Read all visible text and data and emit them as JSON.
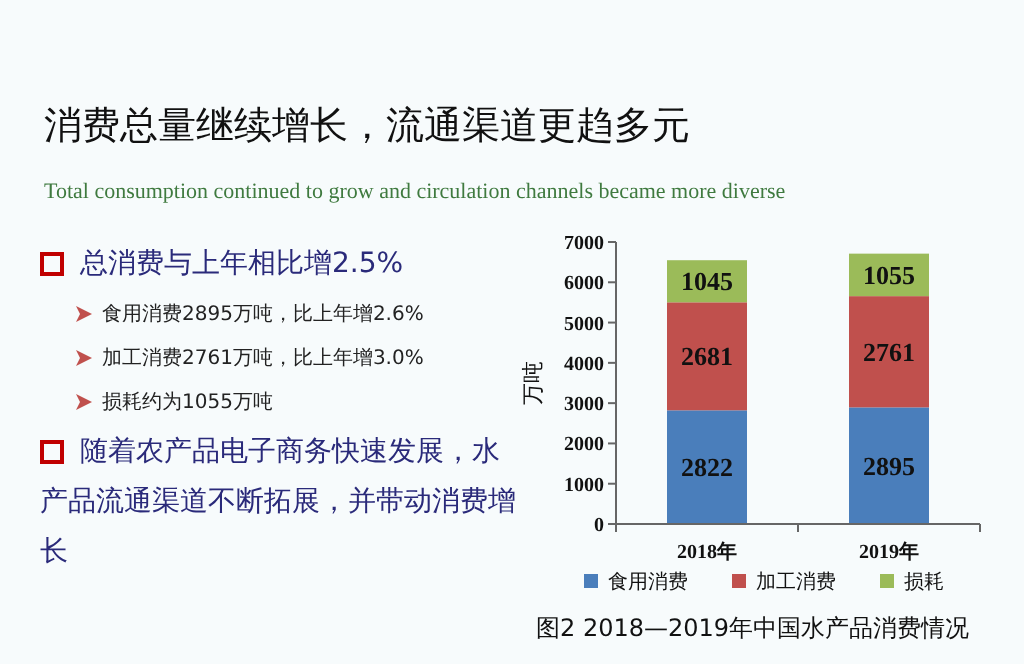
{
  "chart_data": {
    "type": "bar",
    "stacked": true,
    "title": "消费总量继续增长，流通渠道更趋多元",
    "subtitle": "Total consumption continued to grow and  circulation channels became more diverse",
    "categories": [
      "2018年",
      "2019年"
    ],
    "ylabel": "万吨",
    "ylim": [
      0,
      7000
    ],
    "yticks": [
      0,
      1000,
      2000,
      3000,
      4000,
      5000,
      6000,
      7000
    ],
    "series": [
      {
        "name": "食用消费",
        "color": "#4a7ebb",
        "values": [
          2822,
          2895
        ]
      },
      {
        "name": "加工消费",
        "color": "#c0504d",
        "values": [
          2681,
          2761
        ]
      },
      {
        "name": "损耗",
        "color": "#9bbb59",
        "values": [
          1045,
          1055
        ]
      }
    ],
    "data_labels": true,
    "legend": "bottom",
    "grid": false,
    "annotations": [
      "总消费与上年相比增2.5%",
      "食用消费2895万吨，比上年增2.6%",
      "加工消费2761万吨，比上年增3.0%",
      "损耗约为1055万吨",
      "随着农产品电子商务快速发展，水产品流通渠道不断拓展，并带动消费增长",
      "图2  2018—2019年中国水产品消费情况"
    ]
  }
}
